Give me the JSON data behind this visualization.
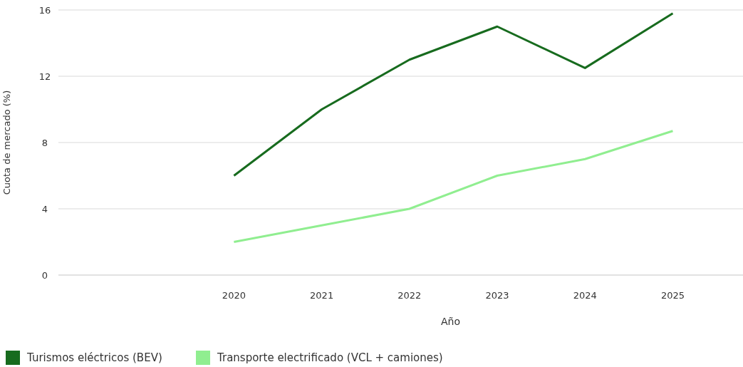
{
  "chart_data": {
    "type": "line",
    "xlabel": "Año",
    "ylabel": "Cuota de mercado (%)",
    "x": [
      2020,
      2021,
      2022,
      2023,
      2024,
      2025
    ],
    "xlim": [
      2018,
      2025.8
    ],
    "xticks": [
      2020,
      2021,
      2022,
      2023,
      2024,
      2025
    ],
    "ylim": [
      0,
      16
    ],
    "yticks": [
      0,
      4,
      8,
      12,
      16
    ],
    "grid": "y",
    "legend": "bottom left",
    "marker": "none",
    "line_style": "solid",
    "series": [
      {
        "name": "Turismos eléctricos (BEV)",
        "color": "#176b1e",
        "values": [
          6.0,
          10.0,
          13.0,
          15.0,
          12.5,
          15.8
        ]
      },
      {
        "name": "Transporte electrificado (VCL + camiones)",
        "color": "#90ee90",
        "values": [
          2.0,
          3.0,
          4.0,
          6.0,
          7.0,
          8.7
        ]
      }
    ]
  }
}
